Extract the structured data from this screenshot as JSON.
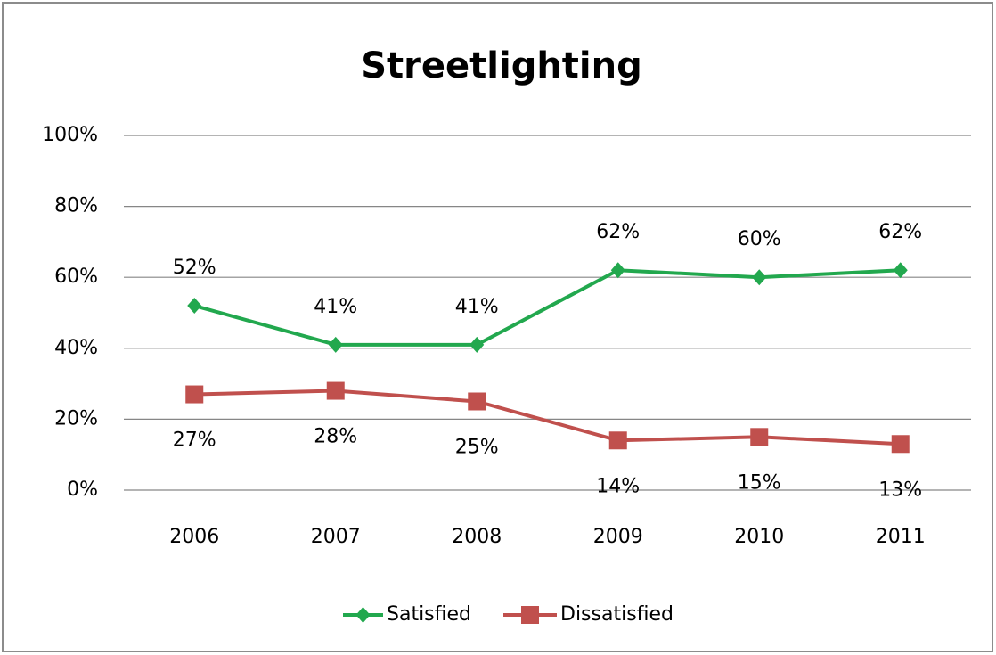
{
  "chart_data": {
    "type": "line",
    "title": "Streetlighting",
    "categories": [
      "2006",
      "2007",
      "2008",
      "2009",
      "2010",
      "2011"
    ],
    "series": [
      {
        "name": "Satisfied",
        "color": "#22a84e",
        "values": [
          52,
          41,
          41,
          62,
          60,
          62
        ],
        "value_labels": [
          "52%",
          "41%",
          "41%",
          "62%",
          "60%",
          "62%"
        ]
      },
      {
        "name": "Dissatisfied",
        "color": "#c0504d",
        "values": [
          27,
          28,
          25,
          14,
          15,
          13
        ],
        "value_labels": [
          "27%",
          "28%",
          "25%",
          "14%",
          "15%",
          "13%"
        ]
      }
    ],
    "ylim": [
      0,
      100
    ],
    "yticks": [
      {
        "value": 0,
        "label": "0%"
      },
      {
        "value": 20,
        "label": "20%"
      },
      {
        "value": 40,
        "label": "40%"
      },
      {
        "value": 60,
        "label": "60%"
      },
      {
        "value": 80,
        "label": "80%"
      },
      {
        "value": 100,
        "label": "100%"
      }
    ],
    "grid": true,
    "legend": "bottom"
  }
}
